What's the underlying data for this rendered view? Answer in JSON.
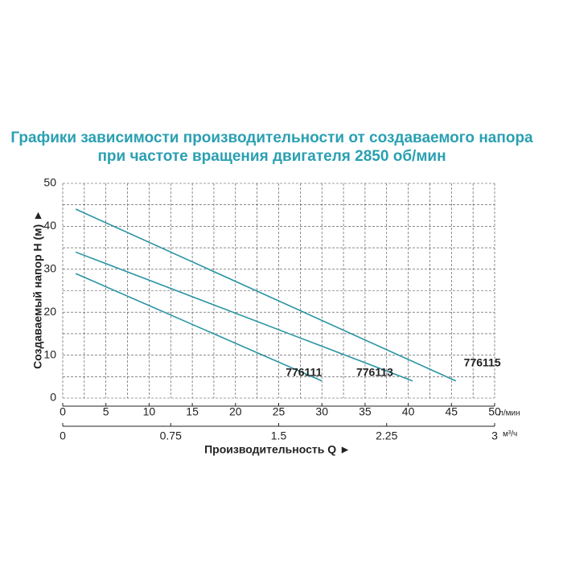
{
  "chart_data": {
    "type": "line",
    "title": [
      "Графики зависимости производительности от создаваемого напора",
      "при частоте вращения двигателя 2850 об/мин"
    ],
    "y_label": "Создаваемый напор H (м) ►",
    "x_label": "Производительность Q ►",
    "x_unit": "л/мин",
    "x2_unit": "м³/ч",
    "xlim": [
      0,
      50
    ],
    "xticks": [
      0,
      5,
      10,
      15,
      20,
      25,
      30,
      35,
      40,
      45,
      50
    ],
    "x2lim": [
      0,
      3
    ],
    "x2ticks": [
      0,
      0.75,
      1.5,
      2.25,
      3
    ],
    "ylim": [
      0,
      50
    ],
    "yticks": [
      0,
      10,
      20,
      30,
      40,
      50
    ],
    "xgrid": [
      0,
      2.5,
      5,
      7.5,
      10,
      12.5,
      15,
      17.5,
      20,
      22.5,
      25,
      27.5,
      30,
      32.5,
      35,
      37.5,
      40,
      42.5,
      45,
      47.5,
      50
    ],
    "ygrid": [
      0,
      5,
      10,
      15,
      20,
      25,
      30,
      35,
      40,
      45,
      50
    ],
    "grid": true,
    "series": [
      {
        "name": "776111",
        "color": "#2b95a3",
        "x": [
          1.5,
          30
        ],
        "values": [
          29,
          4
        ]
      },
      {
        "name": "776113",
        "color": "#2b95a3",
        "x": [
          1.5,
          40.5
        ],
        "values": [
          34,
          4
        ]
      },
      {
        "name": "776115",
        "color": "#2b95a3",
        "x": [
          1.5,
          45.5
        ],
        "values": [
          44,
          4
        ]
      }
    ]
  }
}
